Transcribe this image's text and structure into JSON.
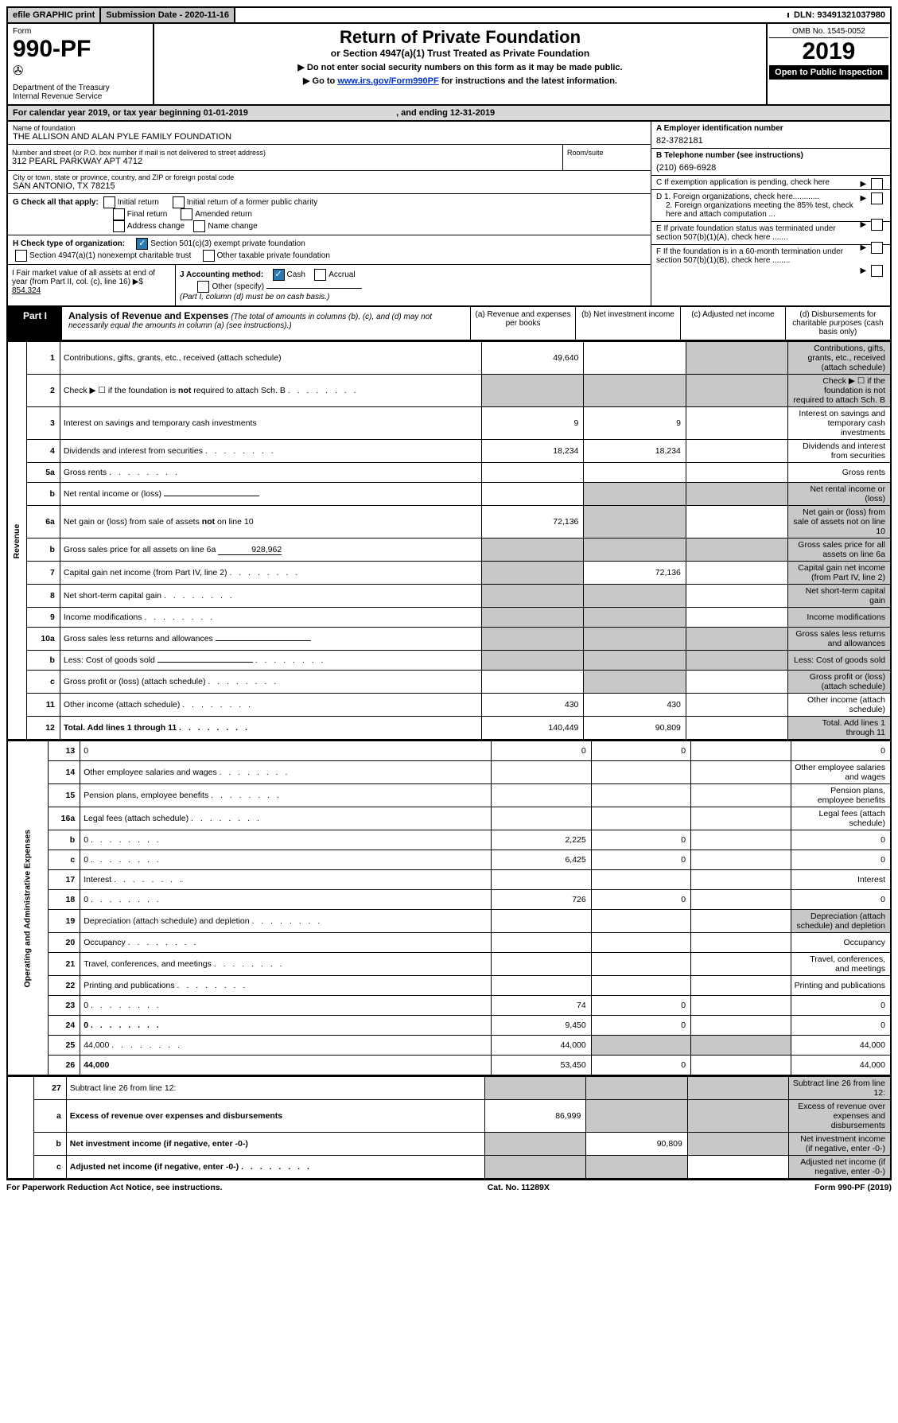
{
  "top": {
    "efile": "efile GRAPHIC print",
    "sub_date_label": "Submission Date - ",
    "sub_date": "2020-11-16",
    "dln_label": "DLN: ",
    "dln": "93491321037980"
  },
  "header": {
    "form_label": "Form",
    "form_no": "990-PF",
    "dept": "Department of the Treasury\nInternal Revenue Service",
    "title": "Return of Private Foundation",
    "subtitle": "or Section 4947(a)(1) Trust Treated as Private Foundation",
    "instruct1": "▶ Do not enter social security numbers on this form as it may be made public.",
    "instruct2_pre": "▶ Go to ",
    "instruct2_link": "www.irs.gov/Form990PF",
    "instruct2_post": " for instructions and the latest information.",
    "omb": "OMB No. 1545-0052",
    "year": "2019",
    "open": "Open to Public Inspection"
  },
  "cal_year": {
    "pre": "For calendar year 2019, or tax year beginning ",
    "begin": "01-01-2019",
    "mid": " , and ending ",
    "end": "12-31-2019"
  },
  "info": {
    "name_label": "Name of foundation",
    "name": "THE ALLISON AND ALAN PYLE FAMILY FOUNDATION",
    "addr_label": "Number and street (or P.O. box number if mail is not delivered to street address)",
    "addr": "312 PEARL PARKWAY APT 4712",
    "room_label": "Room/suite",
    "city_label": "City or town, state or province, country, and ZIP or foreign postal code",
    "city": "SAN ANTONIO, TX  78215",
    "a_label": "A Employer identification number",
    "a_val": "82-3782181",
    "b_label": "B Telephone number (see instructions)",
    "b_val": "(210) 669-6928",
    "c_label": "C If exemption application is pending, check here",
    "g_label": "G Check all that apply:",
    "g_opts": [
      "Initial return",
      "Initial return of a former public charity",
      "Final return",
      "Amended return",
      "Address change",
      "Name change"
    ],
    "d1": "D 1. Foreign organizations, check here............",
    "d2": "2. Foreign organizations meeting the 85% test, check here and attach computation ...",
    "h_label": "H Check type of organization:",
    "h_opts": [
      "Section 501(c)(3) exempt private foundation",
      "Section 4947(a)(1) nonexempt charitable trust",
      "Other taxable private foundation"
    ],
    "e_label": "E  If private foundation status was terminated under section 507(b)(1)(A), check here .......",
    "i_label": "I Fair market value of all assets at end of year (from Part II, col. (c), line 16) ▶$",
    "i_val": "854,324",
    "j_label": "J Accounting method:",
    "j_opts": [
      "Cash",
      "Accrual",
      "Other (specify)"
    ],
    "j_note": "(Part I, column (d) must be on cash basis.)",
    "f_label": "F  If the foundation is in a 60-month termination under section 507(b)(1)(B), check here ........"
  },
  "part1": {
    "label": "Part I",
    "title": "Analysis of Revenue and Expenses",
    "note": " (The total of amounts in columns (b), (c), and (d) may not necessarily equal the amounts in column (a) (see instructions).)",
    "col_a": "(a) Revenue and expenses per books",
    "col_b": "(b) Net investment income",
    "col_c": "(c) Adjusted net income",
    "col_d": "(d) Disbursements for charitable purposes (cash basis only)"
  },
  "side_rev": "Revenue",
  "side_exp": "Operating and Administrative Expenses",
  "rows": [
    {
      "n": "1",
      "d": "Contributions, gifts, grants, etc., received (attach schedule)",
      "a": "49,640",
      "b": "",
      "c_shade": true,
      "d_shade": true
    },
    {
      "n": "2",
      "d": "Check ▶ ☐ if the foundation is not required to attach Sch. B",
      "dots": true,
      "all_shade": true
    },
    {
      "n": "3",
      "d": "Interest on savings and temporary cash investments",
      "a": "9",
      "b": "9"
    },
    {
      "n": "4",
      "d": "Dividends and interest from securities",
      "dots": true,
      "a": "18,234",
      "b": "18,234"
    },
    {
      "n": "5a",
      "d": "Gross rents",
      "dots": true
    },
    {
      "n": "b",
      "d": "Net rental income or (loss)",
      "underline_after": true,
      "bcd_shade": true
    },
    {
      "n": "6a",
      "d": "Net gain or (loss) from sale of assets not on line 10",
      "a": "72,136",
      "b_shade": true,
      "d_shade": true
    },
    {
      "n": "b",
      "d": "Gross sales price for all assets on line 6a",
      "inline_val": "928,962",
      "all_shade": true
    },
    {
      "n": "7",
      "d": "Capital gain net income (from Part IV, line 2)",
      "dots": true,
      "a_shade": true,
      "b": "72,136",
      "d_shade": true
    },
    {
      "n": "8",
      "d": "Net short-term capital gain",
      "dots": true,
      "a_shade": true,
      "b_shade": true,
      "d_shade": true
    },
    {
      "n": "9",
      "d": "Income modifications",
      "dots": true,
      "a_shade": true,
      "b_shade": true,
      "d_shade": true
    },
    {
      "n": "10a",
      "d": "Gross sales less returns and allowances",
      "underline_after": true,
      "all_shade": true
    },
    {
      "n": "b",
      "d": "Less: Cost of goods sold",
      "dots": true,
      "underline_after": true,
      "all_shade": true
    },
    {
      "n": "c",
      "d": "Gross profit or (loss) (attach schedule)",
      "dots": true,
      "b_shade": true,
      "d_shade": true
    },
    {
      "n": "11",
      "d": "Other income (attach schedule)",
      "dots": true,
      "a": "430",
      "b": "430"
    },
    {
      "n": "12",
      "d": "Total. Add lines 1 through 11",
      "dots": true,
      "bold": true,
      "a": "140,449",
      "b": "90,809",
      "d_shade": true
    }
  ],
  "exp_rows": [
    {
      "n": "13",
      "d": "0",
      "a": "0",
      "b": "0"
    },
    {
      "n": "14",
      "d": "Other employee salaries and wages",
      "dots": true
    },
    {
      "n": "15",
      "d": "Pension plans, employee benefits",
      "dots": true
    },
    {
      "n": "16a",
      "d": "Legal fees (attach schedule)",
      "dots": true
    },
    {
      "n": "b",
      "d": "0",
      "dots": true,
      "a": "2,225",
      "b": "0"
    },
    {
      "n": "c",
      "d": "0",
      "dots": true,
      "a": "6,425",
      "b": "0"
    },
    {
      "n": "17",
      "d": "Interest",
      "dots": true
    },
    {
      "n": "18",
      "d": "0",
      "dots": true,
      "a": "726",
      "b": "0"
    },
    {
      "n": "19",
      "d": "Depreciation (attach schedule) and depletion",
      "dots": true,
      "d_shade": true
    },
    {
      "n": "20",
      "d": "Occupancy",
      "dots": true
    },
    {
      "n": "21",
      "d": "Travel, conferences, and meetings",
      "dots": true
    },
    {
      "n": "22",
      "d": "Printing and publications",
      "dots": true
    },
    {
      "n": "23",
      "d": "0",
      "dots": true,
      "a": "74",
      "b": "0"
    },
    {
      "n": "24",
      "d": "0",
      "dots": true,
      "bold": true,
      "a": "9,450",
      "b": "0"
    },
    {
      "n": "25",
      "d": "44,000",
      "dots": true,
      "a": "44,000",
      "b_shade": true,
      "c_shade": true
    },
    {
      "n": "26",
      "d": "44,000",
      "bold": true,
      "a": "53,450",
      "b": "0"
    }
  ],
  "final_rows": [
    {
      "n": "27",
      "d": "Subtract line 26 from line 12:",
      "all_shade": true
    },
    {
      "n": "a",
      "d": "Excess of revenue over expenses and disbursements",
      "bold": true,
      "a": "86,999",
      "b_shade": true,
      "c_shade": true,
      "d_shade": true
    },
    {
      "n": "b",
      "d": "Net investment income (if negative, enter -0-)",
      "bold": true,
      "a_shade": true,
      "b": "90,809",
      "c_shade": true,
      "d_shade": true
    },
    {
      "n": "c",
      "d": "Adjusted net income (if negative, enter -0-)",
      "bold": true,
      "dots": true,
      "a_shade": true,
      "b_shade": true,
      "d_shade": true
    }
  ],
  "footer": {
    "left": "For Paperwork Reduction Act Notice, see instructions.",
    "mid": "Cat. No. 11289X",
    "right": "Form 990-PF (2019)"
  }
}
